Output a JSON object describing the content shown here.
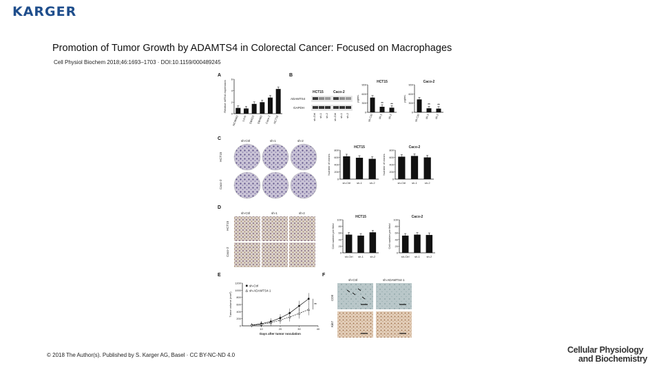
{
  "header": {
    "logo_text": "KARGER",
    "title": "Promotion of Tumor Growth by ADAMTS4 in Colorectal Cancer: Focused on Macrophages",
    "citation": "Cell Physiol Biochem 2018;46:1693–1703 · DOI:10.1159/000489245"
  },
  "footer": {
    "copyright": "© 2018 The Author(s). Published by S. Karger AG, Basel · CC BY-NC-ND 4.0",
    "journal_line1": "Cellular Physiology",
    "journal_line2": "and Biochemistry"
  },
  "figure": {
    "panel_a": {
      "label": "A",
      "ylabel": "Relative mRNA expression",
      "categories": [
        "NCM460",
        "LoVo",
        "SW620",
        "SW480",
        "Caco-2",
        "HCT15"
      ],
      "values": [
        1.0,
        0.9,
        1.7,
        2.0,
        2.8,
        4.3
      ],
      "ymax": 6,
      "ticks": [
        "0",
        "2",
        "4",
        "6"
      ]
    },
    "panel_b": {
      "label": "B",
      "blot_cols": [
        "HCT15",
        "Caco-2"
      ],
      "blot_rows": [
        "ADAMTS4",
        "GAPDH"
      ],
      "blot_lanes": [
        "sh-Ctrl",
        "sh-1",
        "sh-2",
        "sh-Ctrl",
        "sh-1",
        "sh-2"
      ],
      "charts": [
        {
          "title": "HCT15",
          "ylabel": "pg/mL",
          "categories": [
            "sh-Ctrl",
            "sh-1",
            "sh-2"
          ],
          "values": [
            480,
            180,
            150
          ],
          "ymax": 900,
          "ticks": [
            "0",
            "300",
            "600",
            "900"
          ],
          "sig": [
            "",
            "**",
            "**"
          ]
        },
        {
          "title": "Caco-2",
          "ylabel": "pg/mL",
          "categories": [
            "sh-Ctrl",
            "sh-1",
            "sh-2"
          ],
          "values": [
            420,
            130,
            120
          ],
          "ymax": 900,
          "ticks": [
            "0",
            "300",
            "600",
            "900"
          ],
          "sig": [
            "",
            "**",
            "**"
          ]
        }
      ]
    },
    "panel_c": {
      "label": "C",
      "col_labels": [
        "sh-Ctrl",
        "sh-1",
        "sh-2"
      ],
      "row_labels": [
        "HCT15",
        "Caco-2"
      ],
      "charts": [
        {
          "title": "HCT15",
          "ylabel": "Number of clones",
          "categories": [
            "sh-Ctrl",
            "sh-1",
            "sh-2"
          ],
          "values": [
            630,
            590,
            560
          ],
          "ymax": 800,
          "ticks": [
            "0",
            "200",
            "400",
            "600",
            "800"
          ]
        },
        {
          "title": "Caco-2",
          "ylabel": "Number of clones",
          "categories": [
            "sh-Ctrl",
            "sh-1",
            "sh-2"
          ],
          "values": [
            620,
            640,
            600
          ],
          "ymax": 800,
          "ticks": [
            "0",
            "200",
            "400",
            "600",
            "800"
          ]
        }
      ]
    },
    "panel_d": {
      "label": "D",
      "col_labels": [
        "sh-Ctrl",
        "sh-1",
        "sh-2"
      ],
      "row_labels": [
        "HCT15",
        "Caco-2"
      ],
      "charts": [
        {
          "title": "HCT15",
          "ylabel": "Cell number per field",
          "categories": [
            "sh-Ctrl",
            "sh-1",
            "sh-2"
          ],
          "values": [
            55,
            52,
            62
          ],
          "ymax": 100,
          "ticks": [
            "0",
            "20",
            "40",
            "60",
            "80",
            "100"
          ]
        },
        {
          "title": "Caco-2",
          "ylabel": "Cell number per field",
          "categories": [
            "sh-Ctrl",
            "sh-1",
            "sh-2"
          ],
          "values": [
            52,
            55,
            54
          ],
          "ymax": 100,
          "ticks": [
            "0",
            "20",
            "40",
            "60",
            "80",
            "100"
          ]
        }
      ]
    },
    "panel_e": {
      "label": "E",
      "xlabel": "Days after tumor noculation",
      "ylabel": "Tumor volume (mm³)",
      "x": [
        5,
        10,
        15,
        20,
        25,
        30,
        35
      ],
      "xticks": [
        "10",
        "20",
        "30",
        "40"
      ],
      "yticks": [
        "0",
        "200",
        "400",
        "600",
        "800",
        "1000",
        "1200"
      ],
      "xlim": [
        0,
        40
      ],
      "ylim": [
        0,
        1200
      ],
      "series": [
        {
          "name": "sh-Ctrl",
          "values": [
            20,
            60,
            120,
            220,
            360,
            560,
            760
          ]
        },
        {
          "name": "sh-ADAMTS4-1",
          "values": [
            15,
            40,
            90,
            160,
            250,
            350,
            460
          ]
        }
      ],
      "sig": "**"
    },
    "panel_f": {
      "label": "F",
      "col_labels": [
        "sh-Ctrl",
        "sh-ADAMTS4-1"
      ],
      "row_labels": [
        "CD8",
        "Ki67"
      ]
    }
  }
}
